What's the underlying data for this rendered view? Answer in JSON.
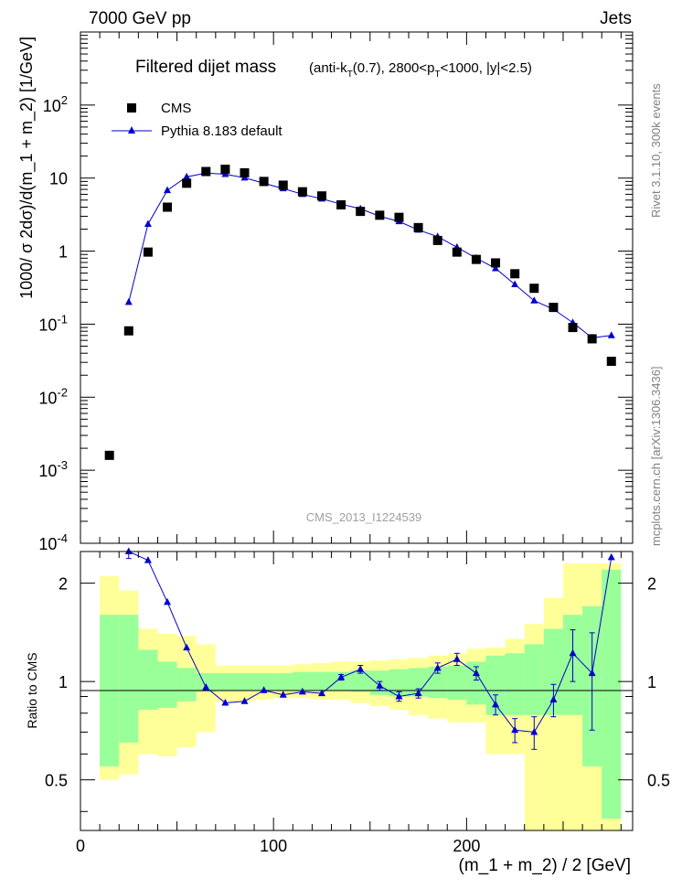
{
  "header": {
    "left": "7000 GeV pp",
    "right": "Jets"
  },
  "title": {
    "main": "Filtered dijet mass",
    "cuts_prefix": "(anti-k",
    "cuts_sub1": "T",
    "cuts_mid": "(0.7), 2800<p",
    "cuts_sub2": "T",
    "cuts_suffix": "<1000, |y|<2.5)"
  },
  "side_labels": {
    "rivet": "Rivet 3.1.10,  300k events",
    "mcplots": "mcplots.cern.ch [arXiv:1306.3436]"
  },
  "watermark": "CMS_2013_I1224539",
  "legend": {
    "data": "CMS",
    "mc": "Pythia 8.183 default"
  },
  "colors": {
    "data": "#000000",
    "mc": "#0000cc",
    "band_inner": "#99ff99",
    "band_outer": "#ffff99"
  },
  "chart_data": [
    {
      "type": "scatter",
      "title": "Filtered dijet mass",
      "xlabel": "(m_1 + m_2) / 2 [GeV]",
      "ylabel": "1000/ σ 2dσ)/d(m_1 + m_2) [1/GeV]",
      "yscale": "log",
      "xlim": [
        0,
        286
      ],
      "ylim": [
        0.0001,
        1000
      ],
      "y_ticks": [
        "10^-4",
        "10^-3",
        "10^-2",
        "10^-1",
        "1",
        "10",
        "10^2"
      ],
      "series": [
        {
          "name": "CMS",
          "marker": "square",
          "x": [
            15,
            25,
            35,
            45,
            55,
            65,
            75,
            85,
            95,
            105,
            115,
            125,
            135,
            145,
            155,
            165,
            175,
            185,
            195,
            205,
            215,
            225,
            235,
            245,
            255,
            265,
            275
          ],
          "y": [
            0.0016,
            0.081,
            0.97,
            4.0,
            8.5,
            12.3,
            13.2,
            11.8,
            9.0,
            8.0,
            6.5,
            5.7,
            4.3,
            3.5,
            3.1,
            2.9,
            2.1,
            1.4,
            0.97,
            0.77,
            0.69,
            0.49,
            0.31,
            0.17,
            0.09,
            0.063,
            0.031
          ]
        },
        {
          "name": "Pythia 8.183 default",
          "marker": "triangle",
          "x": [
            25,
            35,
            45,
            55,
            65,
            75,
            85,
            95,
            105,
            115,
            125,
            135,
            145,
            155,
            165,
            175,
            185,
            195,
            205,
            215,
            225,
            235,
            245,
            255,
            265,
            275
          ],
          "y": [
            0.2,
            2.35,
            6.8,
            10.4,
            11.7,
            11.3,
            10.1,
            8.5,
            7.2,
            6.0,
            5.2,
            4.4,
            3.8,
            3.0,
            2.55,
            1.95,
            1.58,
            1.13,
            0.8,
            0.58,
            0.35,
            0.21,
            0.16,
            0.105,
            0.065,
            0.07
          ]
        }
      ]
    },
    {
      "type": "line",
      "title": "",
      "xlabel": "(m_1 + m_2) / 2 [GeV]",
      "ylabel": "Ratio to CMS",
      "yscale": "log",
      "xlim": [
        0,
        286
      ],
      "ylim": [
        0.35,
        2.5
      ],
      "x_ticks": [
        0,
        100,
        200
      ],
      "y_ticks": [
        "0.5",
        "1",
        "2"
      ],
      "bands": {
        "edges": [
          10,
          20,
          30,
          40,
          50,
          60,
          70,
          80,
          90,
          100,
          110,
          120,
          130,
          140,
          150,
          160,
          170,
          180,
          190,
          200,
          210,
          220,
          230,
          240,
          250,
          260,
          270,
          280
        ],
        "inner_low": [
          0.55,
          0.65,
          0.82,
          0.83,
          0.87,
          0.93,
          0.94,
          0.94,
          0.94,
          0.94,
          0.94,
          0.94,
          0.94,
          0.93,
          0.91,
          0.9,
          0.9,
          0.89,
          0.88,
          0.85,
          0.79,
          0.79,
          0.79,
          0.79,
          0.79,
          0.55,
          0.38
        ],
        "inner_high": [
          1.6,
          1.6,
          1.25,
          1.15,
          1.1,
          1.06,
          1.06,
          1.06,
          1.06,
          1.06,
          1.07,
          1.07,
          1.07,
          1.08,
          1.08,
          1.09,
          1.1,
          1.11,
          1.12,
          1.15,
          1.2,
          1.22,
          1.3,
          1.45,
          1.6,
          1.7,
          2.2
        ],
        "outer_low": [
          0.5,
          0.52,
          0.6,
          0.59,
          0.63,
          0.7,
          0.87,
          0.87,
          0.88,
          0.89,
          0.89,
          0.88,
          0.88,
          0.86,
          0.84,
          0.82,
          0.79,
          0.77,
          0.75,
          0.75,
          0.6,
          0.6,
          0.35,
          0.35,
          0.35,
          0.35,
          0.35
        ],
        "outer_high": [
          2.1,
          1.9,
          1.45,
          1.4,
          1.38,
          1.3,
          1.12,
          1.12,
          1.12,
          1.12,
          1.13,
          1.14,
          1.15,
          1.15,
          1.16,
          1.17,
          1.18,
          1.2,
          1.22,
          1.26,
          1.27,
          1.35,
          1.5,
          1.8,
          2.3,
          2.3,
          2.3
        ]
      },
      "series": [
        {
          "name": "Pythia 8.183 default / CMS",
          "x": [
            25,
            35,
            45,
            55,
            65,
            75,
            85,
            95,
            105,
            115,
            125,
            135,
            145,
            155,
            165,
            175,
            185,
            195,
            205,
            215,
            225,
            235,
            245,
            255,
            265,
            275
          ],
          "y": [
            2.5,
            2.35,
            1.75,
            1.27,
            0.96,
            0.86,
            0.87,
            0.94,
            0.91,
            0.93,
            0.92,
            1.03,
            1.09,
            0.97,
            0.9,
            0.92,
            1.1,
            1.17,
            1.06,
            0.85,
            0.71,
            0.7,
            0.88,
            1.22,
            1.06,
            2.4
          ],
          "err": [
            0.12,
            0,
            0,
            0,
            0,
            0,
            0,
            0,
            0,
            0,
            0,
            0.02,
            0.03,
            0.03,
            0.03,
            0.03,
            0.04,
            0.05,
            0.05,
            0.06,
            0.06,
            0.08,
            0.1,
            0.22,
            0.35,
            0
          ]
        }
      ]
    }
  ]
}
